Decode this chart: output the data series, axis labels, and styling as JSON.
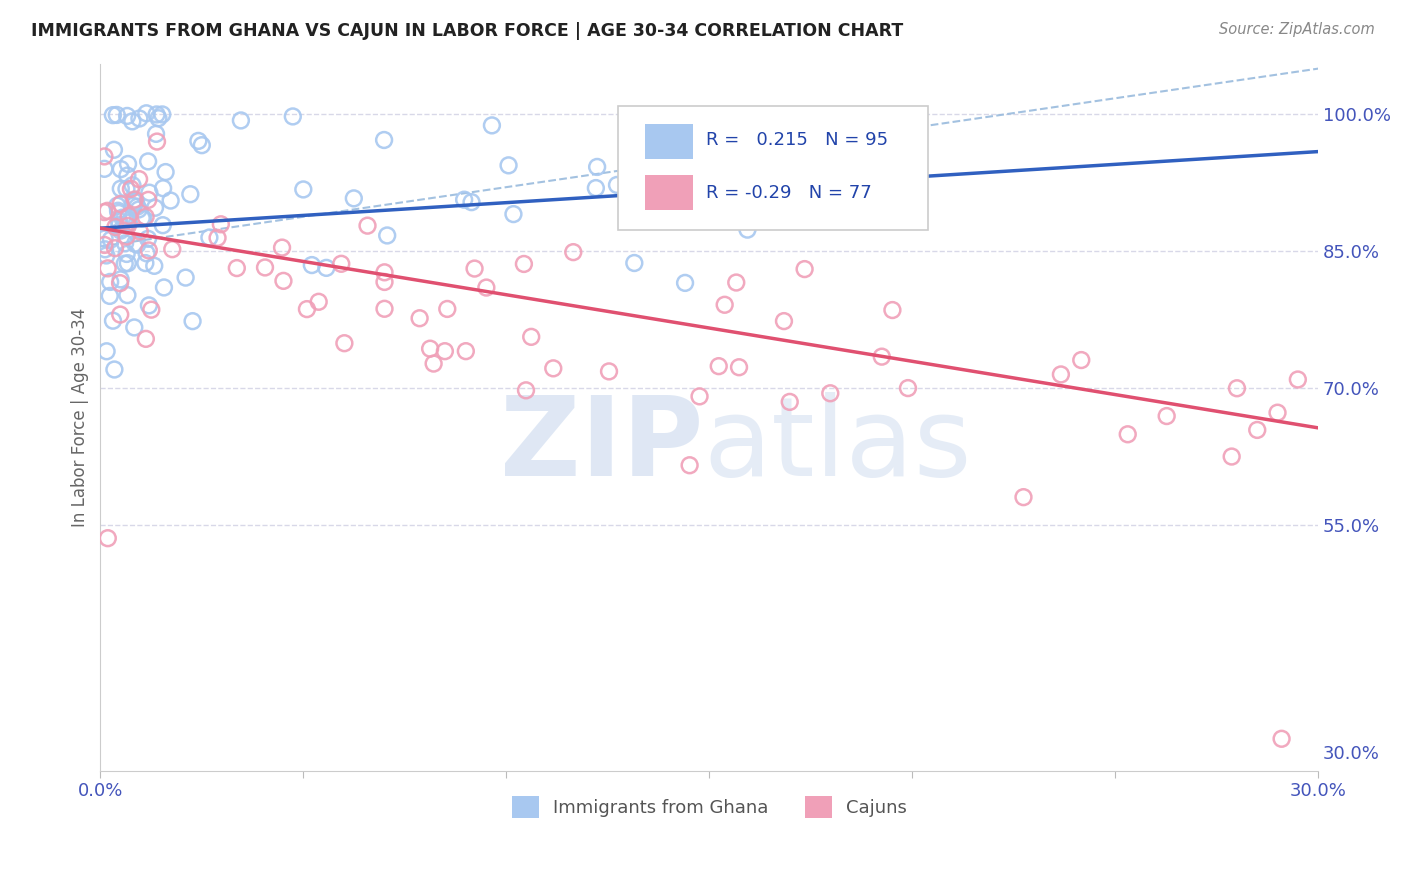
{
  "title": "IMMIGRANTS FROM GHANA VS CAJUN IN LABOR FORCE | AGE 30-34 CORRELATION CHART",
  "source": "Source: ZipAtlas.com",
  "ylabel": "In Labor Force | Age 30-34",
  "x_min": 0.0,
  "x_max": 0.3,
  "y_min": 0.28,
  "y_max": 1.055,
  "x_ticks": [
    0.0,
    0.05,
    0.1,
    0.15,
    0.2,
    0.25,
    0.3
  ],
  "x_tick_labels": [
    "0.0%",
    "",
    "",
    "",
    "",
    "",
    "30.0%"
  ],
  "y_ticks_right": [
    1.0,
    0.85,
    0.7,
    0.55,
    0.3
  ],
  "y_tick_labels_right": [
    "100.0%",
    "85.0%",
    "70.0%",
    "55.0%",
    "30.0%"
  ],
  "ghana_color": "#A8C8F0",
  "cajun_color": "#F0A0B8",
  "ghana_line_color": "#3060C0",
  "cajun_line_color": "#E05070",
  "ghana_R": 0.215,
  "ghana_N": 95,
  "cajun_R": -0.29,
  "cajun_N": 77,
  "legend_label_ghana": "Immigrants from Ghana",
  "legend_label_cajun": "Cajuns",
  "background_color": "#ffffff",
  "grid_color": "#d8d8e8",
  "title_color": "#222222",
  "axis_color": "#4455BB",
  "legend_text_color": "#2244AA",
  "legend_r_color": "#2244AA"
}
